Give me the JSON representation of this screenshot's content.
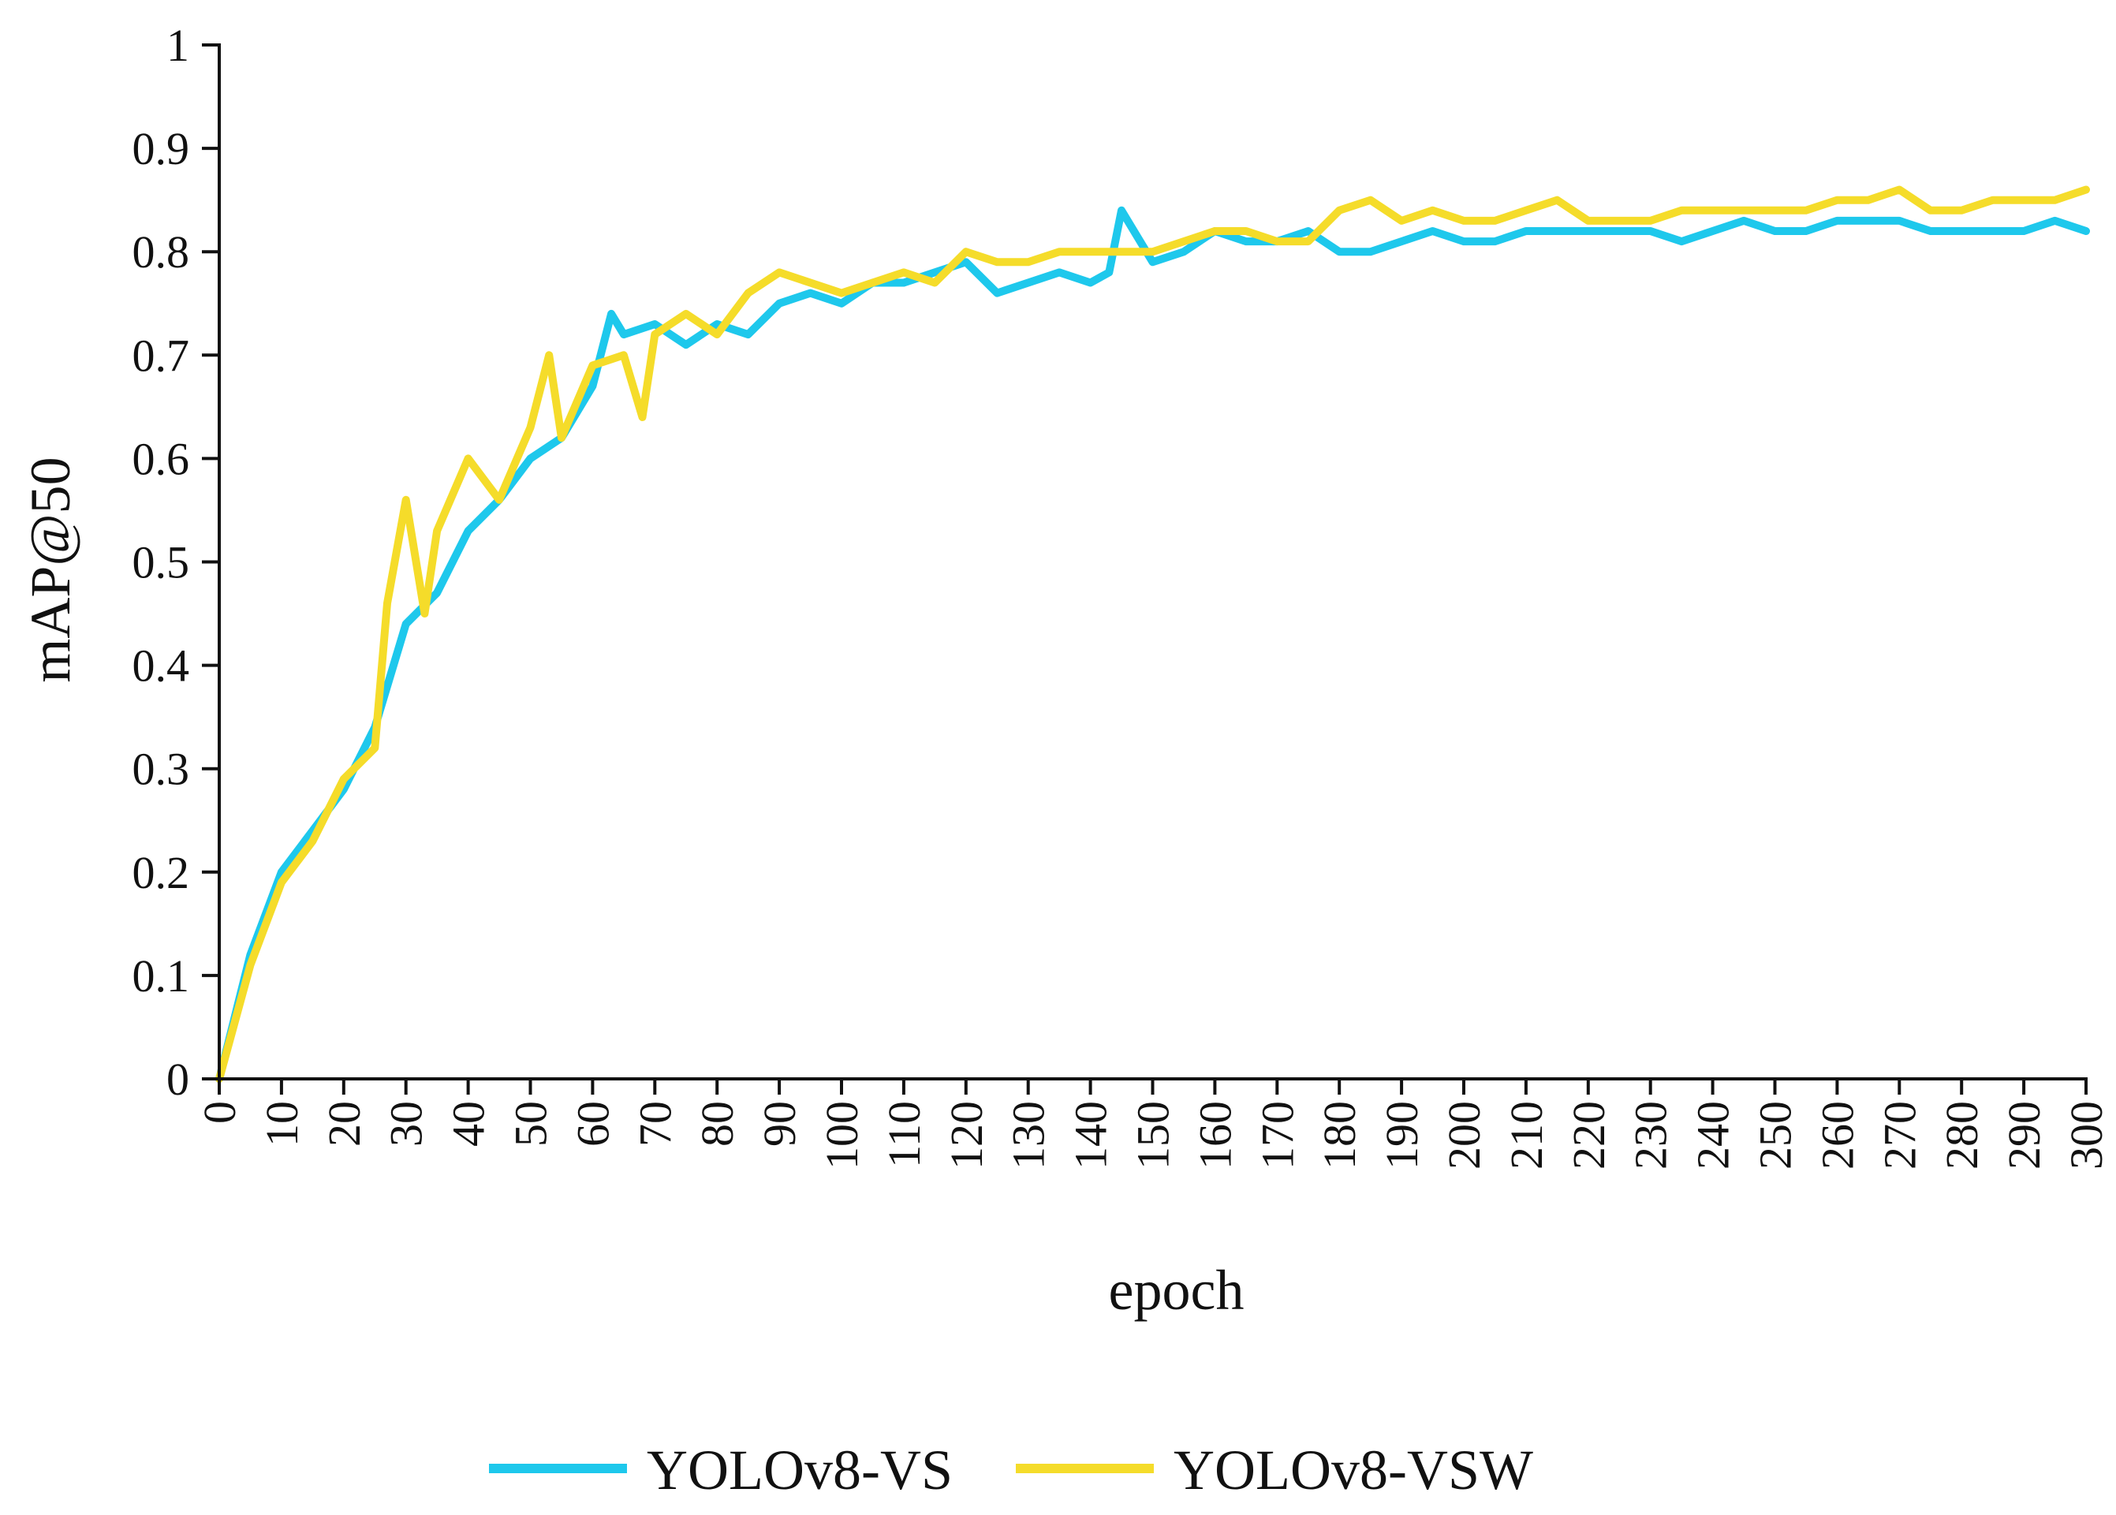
{
  "chart_data": {
    "type": "line",
    "title": "",
    "xlabel": "epoch",
    "ylabel": "mAP@50",
    "xlim": [
      0,
      300
    ],
    "ylim": [
      0,
      1
    ],
    "xticks": [
      "0",
      "10",
      "20",
      "30",
      "40",
      "50",
      "60",
      "70",
      "80",
      "90",
      "100",
      "110",
      "120",
      "130",
      "140",
      "150",
      "160",
      "170",
      "180",
      "190",
      "200",
      "210",
      "220",
      "230",
      "240",
      "250",
      "260",
      "270",
      "280",
      "290",
      "300"
    ],
    "yticks": [
      "0",
      "0.1",
      "0.2",
      "0.3",
      "0.4",
      "0.5",
      "0.6",
      "0.7",
      "0.8",
      "0.9",
      "1"
    ],
    "grid": false,
    "legend_position": "bottom",
    "series": [
      {
        "name": "YOLOv8-VS",
        "color": "#1EC8EC",
        "x": [
          0,
          5,
          10,
          15,
          20,
          25,
          30,
          35,
          40,
          45,
          50,
          55,
          60,
          63,
          65,
          70,
          75,
          80,
          85,
          90,
          95,
          100,
          105,
          110,
          115,
          120,
          125,
          130,
          135,
          140,
          143,
          145,
          150,
          155,
          160,
          165,
          170,
          175,
          180,
          185,
          190,
          195,
          200,
          205,
          210,
          215,
          220,
          225,
          230,
          235,
          240,
          245,
          250,
          255,
          260,
          265,
          270,
          275,
          280,
          285,
          290,
          295,
          300
        ],
        "values": [
          0.0,
          0.12,
          0.2,
          0.24,
          0.28,
          0.34,
          0.44,
          0.47,
          0.53,
          0.56,
          0.6,
          0.62,
          0.67,
          0.74,
          0.72,
          0.73,
          0.71,
          0.73,
          0.72,
          0.75,
          0.76,
          0.75,
          0.77,
          0.77,
          0.78,
          0.79,
          0.76,
          0.77,
          0.78,
          0.77,
          0.78,
          0.84,
          0.79,
          0.8,
          0.82,
          0.81,
          0.81,
          0.82,
          0.8,
          0.8,
          0.81,
          0.82,
          0.81,
          0.81,
          0.82,
          0.82,
          0.82,
          0.82,
          0.82,
          0.81,
          0.82,
          0.83,
          0.82,
          0.82,
          0.83,
          0.83,
          0.83,
          0.82,
          0.82,
          0.82,
          0.82,
          0.83,
          0.82
        ]
      },
      {
        "name": "YOLOv8-VSW",
        "color": "#F5DC2A",
        "x": [
          0,
          5,
          10,
          15,
          20,
          25,
          27,
          30,
          33,
          35,
          40,
          45,
          50,
          53,
          55,
          60,
          65,
          68,
          70,
          75,
          80,
          85,
          90,
          95,
          100,
          105,
          110,
          115,
          120,
          125,
          130,
          135,
          140,
          145,
          150,
          155,
          160,
          165,
          170,
          175,
          180,
          185,
          190,
          195,
          200,
          205,
          210,
          215,
          220,
          225,
          230,
          235,
          240,
          245,
          250,
          255,
          260,
          265,
          270,
          275,
          280,
          285,
          290,
          295,
          300
        ],
        "values": [
          0.0,
          0.11,
          0.19,
          0.23,
          0.29,
          0.32,
          0.46,
          0.56,
          0.45,
          0.53,
          0.6,
          0.56,
          0.63,
          0.7,
          0.62,
          0.69,
          0.7,
          0.64,
          0.72,
          0.74,
          0.72,
          0.76,
          0.78,
          0.77,
          0.76,
          0.77,
          0.78,
          0.77,
          0.8,
          0.79,
          0.79,
          0.8,
          0.8,
          0.8,
          0.8,
          0.81,
          0.82,
          0.82,
          0.81,
          0.81,
          0.84,
          0.85,
          0.83,
          0.84,
          0.83,
          0.83,
          0.84,
          0.85,
          0.83,
          0.83,
          0.83,
          0.84,
          0.84,
          0.84,
          0.84,
          0.84,
          0.85,
          0.85,
          0.86,
          0.84,
          0.84,
          0.85,
          0.85,
          0.85,
          0.86
        ]
      }
    ]
  }
}
